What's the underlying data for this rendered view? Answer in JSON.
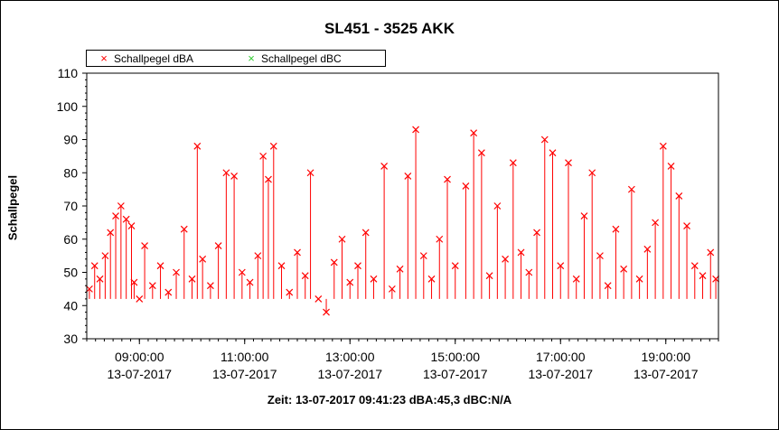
{
  "chart_data": {
    "type": "scatter",
    "title": "SL451 - 3525 AKK",
    "ylabel": "Schallpegel",
    "status_line": "Zeit: 13-07-2017 09:41:23 dBA:45,3 dBC:N/A",
    "ylim": [
      30,
      110
    ],
    "yticks": [
      "30",
      "40",
      "50",
      "60",
      "70",
      "80",
      "90",
      "100",
      "110"
    ],
    "xlim": [
      "13-07-2017 08:00:00",
      "13-07-2017 20:00:00"
    ],
    "xticks": [
      {
        "time": "09:00:00",
        "date": "13-07-2017"
      },
      {
        "time": "11:00:00",
        "date": "13-07-2017"
      },
      {
        "time": "13:00:00",
        "date": "13-07-2017"
      },
      {
        "time": "15:00:00",
        "date": "13-07-2017"
      },
      {
        "time": "17:00:00",
        "date": "13-07-2017"
      },
      {
        "time": "19:00:00",
        "date": "13-07-2017"
      }
    ],
    "series": [
      {
        "name": "Schallpegel dBA",
        "color": "#ff0000",
        "marker": "x",
        "points": [
          [
            8.05,
            45
          ],
          [
            8.15,
            52
          ],
          [
            8.25,
            48
          ],
          [
            8.35,
            55
          ],
          [
            8.45,
            62
          ],
          [
            8.55,
            67
          ],
          [
            8.65,
            70
          ],
          [
            8.75,
            66
          ],
          [
            8.85,
            64
          ],
          [
            8.9,
            47
          ],
          [
            9.0,
            42
          ],
          [
            9.1,
            58
          ],
          [
            9.25,
            46
          ],
          [
            9.4,
            52
          ],
          [
            9.55,
            44
          ],
          [
            9.7,
            50
          ],
          [
            9.85,
            63
          ],
          [
            10.0,
            48
          ],
          [
            10.1,
            88
          ],
          [
            10.2,
            54
          ],
          [
            10.35,
            46
          ],
          [
            10.5,
            58
          ],
          [
            10.65,
            80
          ],
          [
            10.8,
            79
          ],
          [
            10.95,
            50
          ],
          [
            11.1,
            47
          ],
          [
            11.25,
            55
          ],
          [
            11.35,
            85
          ],
          [
            11.45,
            78
          ],
          [
            11.55,
            88
          ],
          [
            11.7,
            52
          ],
          [
            11.85,
            44
          ],
          [
            12.0,
            56
          ],
          [
            12.15,
            49
          ],
          [
            12.25,
            80
          ],
          [
            12.4,
            42
          ],
          [
            12.55,
            38
          ],
          [
            12.7,
            53
          ],
          [
            12.85,
            60
          ],
          [
            13.0,
            47
          ],
          [
            13.15,
            52
          ],
          [
            13.3,
            62
          ],
          [
            13.45,
            48
          ],
          [
            13.65,
            82
          ],
          [
            13.8,
            45
          ],
          [
            13.95,
            51
          ],
          [
            14.1,
            79
          ],
          [
            14.25,
            93
          ],
          [
            14.4,
            55
          ],
          [
            14.55,
            48
          ],
          [
            14.7,
            60
          ],
          [
            14.85,
            78
          ],
          [
            15.0,
            52
          ],
          [
            15.2,
            76
          ],
          [
            15.35,
            92
          ],
          [
            15.5,
            86
          ],
          [
            15.65,
            49
          ],
          [
            15.8,
            70
          ],
          [
            15.95,
            54
          ],
          [
            16.1,
            83
          ],
          [
            16.25,
            56
          ],
          [
            16.4,
            50
          ],
          [
            16.55,
            62
          ],
          [
            16.7,
            90
          ],
          [
            16.85,
            86
          ],
          [
            17.0,
            52
          ],
          [
            17.15,
            83
          ],
          [
            17.3,
            48
          ],
          [
            17.45,
            67
          ],
          [
            17.6,
            80
          ],
          [
            17.75,
            55
          ],
          [
            17.9,
            46
          ],
          [
            18.05,
            63
          ],
          [
            18.2,
            51
          ],
          [
            18.35,
            75
          ],
          [
            18.5,
            48
          ],
          [
            18.65,
            57
          ],
          [
            18.8,
            65
          ],
          [
            18.95,
            88
          ],
          [
            19.1,
            82
          ],
          [
            19.25,
            73
          ],
          [
            19.4,
            64
          ],
          [
            19.55,
            52
          ],
          [
            19.7,
            49
          ],
          [
            19.85,
            56
          ],
          [
            19.95,
            48
          ]
        ]
      },
      {
        "name": "Schallpegel dBC",
        "color": "#33cc33",
        "marker": "x",
        "points": []
      }
    ]
  }
}
